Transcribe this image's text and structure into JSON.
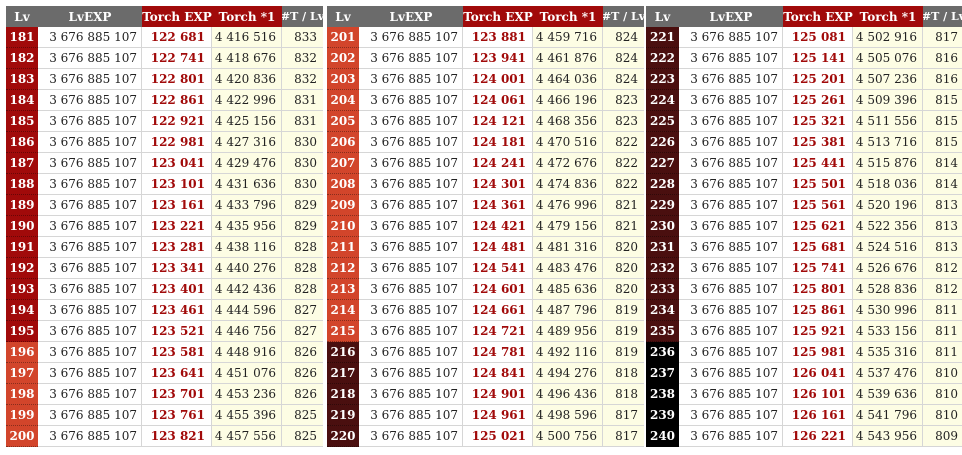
{
  "headers": {
    "lv": "Lv",
    "lvexp": "LvEXP",
    "torch_exp": "Torch EXP",
    "torch_1": "Torch *1",
    "ratio": "#T / Lv"
  },
  "colors": {
    "tier_a": "#a10a0a",
    "tier_b": "#d2452b",
    "tier_c": "#4a0f0f",
    "tier_d": "#000000",
    "accent_text": "#a10a0a",
    "yellow_cell": "#fdfde4"
  },
  "tables": [
    {
      "rows": [
        {
          "lv": "181",
          "exp": "3 676 885 107",
          "torch": "122 681",
          "torch1": "4 416 516",
          "ratio": "833",
          "tier": "a"
        },
        {
          "lv": "182",
          "exp": "3 676 885 107",
          "torch": "122 741",
          "torch1": "4 418 676",
          "ratio": "832",
          "tier": "a"
        },
        {
          "lv": "183",
          "exp": "3 676 885 107",
          "torch": "122 801",
          "torch1": "4 420 836",
          "ratio": "832",
          "tier": "a"
        },
        {
          "lv": "184",
          "exp": "3 676 885 107",
          "torch": "122 861",
          "torch1": "4 422 996",
          "ratio": "831",
          "tier": "a"
        },
        {
          "lv": "185",
          "exp": "3 676 885 107",
          "torch": "122 921",
          "torch1": "4 425 156",
          "ratio": "831",
          "tier": "a"
        },
        {
          "lv": "186",
          "exp": "3 676 885 107",
          "torch": "122 981",
          "torch1": "4 427 316",
          "ratio": "830",
          "tier": "a"
        },
        {
          "lv": "187",
          "exp": "3 676 885 107",
          "torch": "123 041",
          "torch1": "4 429 476",
          "ratio": "830",
          "tier": "a"
        },
        {
          "lv": "188",
          "exp": "3 676 885 107",
          "torch": "123 101",
          "torch1": "4 431 636",
          "ratio": "830",
          "tier": "a"
        },
        {
          "lv": "189",
          "exp": "3 676 885 107",
          "torch": "123 161",
          "torch1": "4 433 796",
          "ratio": "829",
          "tier": "a"
        },
        {
          "lv": "190",
          "exp": "3 676 885 107",
          "torch": "123 221",
          "torch1": "4 435 956",
          "ratio": "829",
          "tier": "a"
        },
        {
          "lv": "191",
          "exp": "3 676 885 107",
          "torch": "123 281",
          "torch1": "4 438 116",
          "ratio": "828",
          "tier": "a"
        },
        {
          "lv": "192",
          "exp": "3 676 885 107",
          "torch": "123 341",
          "torch1": "4 440 276",
          "ratio": "828",
          "tier": "a"
        },
        {
          "lv": "193",
          "exp": "3 676 885 107",
          "torch": "123 401",
          "torch1": "4 442 436",
          "ratio": "828",
          "tier": "a"
        },
        {
          "lv": "194",
          "exp": "3 676 885 107",
          "torch": "123 461",
          "torch1": "4 444 596",
          "ratio": "827",
          "tier": "a"
        },
        {
          "lv": "195",
          "exp": "3 676 885 107",
          "torch": "123 521",
          "torch1": "4 446 756",
          "ratio": "827",
          "tier": "a"
        },
        {
          "lv": "196",
          "exp": "3 676 885 107",
          "torch": "123 581",
          "torch1": "4 448 916",
          "ratio": "826",
          "tier": "b"
        },
        {
          "lv": "197",
          "exp": "3 676 885 107",
          "torch": "123 641",
          "torch1": "4 451 076",
          "ratio": "826",
          "tier": "b"
        },
        {
          "lv": "198",
          "exp": "3 676 885 107",
          "torch": "123 701",
          "torch1": "4 453 236",
          "ratio": "826",
          "tier": "b"
        },
        {
          "lv": "199",
          "exp": "3 676 885 107",
          "torch": "123 761",
          "torch1": "4 455 396",
          "ratio": "825",
          "tier": "b"
        },
        {
          "lv": "200",
          "exp": "3 676 885 107",
          "torch": "123 821",
          "torch1": "4 457 556",
          "ratio": "825",
          "tier": "b"
        }
      ]
    },
    {
      "rows": [
        {
          "lv": "201",
          "exp": "3 676 885 107",
          "torch": "123 881",
          "torch1": "4 459 716",
          "ratio": "824",
          "tier": "b"
        },
        {
          "lv": "202",
          "exp": "3 676 885 107",
          "torch": "123 941",
          "torch1": "4 461 876",
          "ratio": "824",
          "tier": "b"
        },
        {
          "lv": "203",
          "exp": "3 676 885 107",
          "torch": "124 001",
          "torch1": "4 464 036",
          "ratio": "824",
          "tier": "b"
        },
        {
          "lv": "204",
          "exp": "3 676 885 107",
          "torch": "124 061",
          "torch1": "4 466 196",
          "ratio": "823",
          "tier": "b"
        },
        {
          "lv": "205",
          "exp": "3 676 885 107",
          "torch": "124 121",
          "torch1": "4 468 356",
          "ratio": "823",
          "tier": "b"
        },
        {
          "lv": "206",
          "exp": "3 676 885 107",
          "torch": "124 181",
          "torch1": "4 470 516",
          "ratio": "822",
          "tier": "b"
        },
        {
          "lv": "207",
          "exp": "3 676 885 107",
          "torch": "124 241",
          "torch1": "4 472 676",
          "ratio": "822",
          "tier": "b"
        },
        {
          "lv": "208",
          "exp": "3 676 885 107",
          "torch": "124 301",
          "torch1": "4 474 836",
          "ratio": "822",
          "tier": "b"
        },
        {
          "lv": "209",
          "exp": "3 676 885 107",
          "torch": "124 361",
          "torch1": "4 476 996",
          "ratio": "821",
          "tier": "b"
        },
        {
          "lv": "210",
          "exp": "3 676 885 107",
          "torch": "124 421",
          "torch1": "4 479 156",
          "ratio": "821",
          "tier": "b"
        },
        {
          "lv": "211",
          "exp": "3 676 885 107",
          "torch": "124 481",
          "torch1": "4 481 316",
          "ratio": "820",
          "tier": "b"
        },
        {
          "lv": "212",
          "exp": "3 676 885 107",
          "torch": "124 541",
          "torch1": "4 483 476",
          "ratio": "820",
          "tier": "b"
        },
        {
          "lv": "213",
          "exp": "3 676 885 107",
          "torch": "124 601",
          "torch1": "4 485 636",
          "ratio": "820",
          "tier": "b"
        },
        {
          "lv": "214",
          "exp": "3 676 885 107",
          "torch": "124 661",
          "torch1": "4 487 796",
          "ratio": "819",
          "tier": "b"
        },
        {
          "lv": "215",
          "exp": "3 676 885 107",
          "torch": "124 721",
          "torch1": "4 489 956",
          "ratio": "819",
          "tier": "b"
        },
        {
          "lv": "216",
          "exp": "3 676 885 107",
          "torch": "124 781",
          "torch1": "4 492 116",
          "ratio": "819",
          "tier": "c"
        },
        {
          "lv": "217",
          "exp": "3 676 885 107",
          "torch": "124 841",
          "torch1": "4 494 276",
          "ratio": "818",
          "tier": "c"
        },
        {
          "lv": "218",
          "exp": "3 676 885 107",
          "torch": "124 901",
          "torch1": "4 496 436",
          "ratio": "818",
          "tier": "c"
        },
        {
          "lv": "219",
          "exp": "3 676 885 107",
          "torch": "124 961",
          "torch1": "4 498 596",
          "ratio": "817",
          "tier": "c"
        },
        {
          "lv": "220",
          "exp": "3 676 885 107",
          "torch": "125 021",
          "torch1": "4 500 756",
          "ratio": "817",
          "tier": "c"
        }
      ]
    },
    {
      "rows": [
        {
          "lv": "221",
          "exp": "3 676 885 107",
          "torch": "125 081",
          "torch1": "4 502 916",
          "ratio": "817",
          "tier": "c"
        },
        {
          "lv": "222",
          "exp": "3 676 885 107",
          "torch": "125 141",
          "torch1": "4 505 076",
          "ratio": "816",
          "tier": "c"
        },
        {
          "lv": "223",
          "exp": "3 676 885 107",
          "torch": "125 201",
          "torch1": "4 507 236",
          "ratio": "816",
          "tier": "c"
        },
        {
          "lv": "224",
          "exp": "3 676 885 107",
          "torch": "125 261",
          "torch1": "4 509 396",
          "ratio": "815",
          "tier": "c"
        },
        {
          "lv": "225",
          "exp": "3 676 885 107",
          "torch": "125 321",
          "torch1": "4 511 556",
          "ratio": "815",
          "tier": "c"
        },
        {
          "lv": "226",
          "exp": "3 676 885 107",
          "torch": "125 381",
          "torch1": "4 513 716",
          "ratio": "815",
          "tier": "c"
        },
        {
          "lv": "227",
          "exp": "3 676 885 107",
          "torch": "125 441",
          "torch1": "4 515 876",
          "ratio": "814",
          "tier": "c"
        },
        {
          "lv": "228",
          "exp": "3 676 885 107",
          "torch": "125 501",
          "torch1": "4 518 036",
          "ratio": "814",
          "tier": "c"
        },
        {
          "lv": "229",
          "exp": "3 676 885 107",
          "torch": "125 561",
          "torch1": "4 520 196",
          "ratio": "813",
          "tier": "c"
        },
        {
          "lv": "230",
          "exp": "3 676 885 107",
          "torch": "125 621",
          "torch1": "4 522 356",
          "ratio": "813",
          "tier": "c"
        },
        {
          "lv": "231",
          "exp": "3 676 885 107",
          "torch": "125 681",
          "torch1": "4 524 516",
          "ratio": "813",
          "tier": "c"
        },
        {
          "lv": "232",
          "exp": "3 676 885 107",
          "torch": "125 741",
          "torch1": "4 526 676",
          "ratio": "812",
          "tier": "c"
        },
        {
          "lv": "233",
          "exp": "3 676 885 107",
          "torch": "125 801",
          "torch1": "4 528 836",
          "ratio": "812",
          "tier": "c"
        },
        {
          "lv": "234",
          "exp": "3 676 885 107",
          "torch": "125 861",
          "torch1": "4 530 996",
          "ratio": "811",
          "tier": "c"
        },
        {
          "lv": "235",
          "exp": "3 676 885 107",
          "torch": "125 921",
          "torch1": "4 533 156",
          "ratio": "811",
          "tier": "c"
        },
        {
          "lv": "236",
          "exp": "3 676 885 107",
          "torch": "125 981",
          "torch1": "4 535 316",
          "ratio": "811",
          "tier": "d"
        },
        {
          "lv": "237",
          "exp": "3 676 885 107",
          "torch": "126 041",
          "torch1": "4 537 476",
          "ratio": "810",
          "tier": "d"
        },
        {
          "lv": "238",
          "exp": "3 676 885 107",
          "torch": "126 101",
          "torch1": "4 539 636",
          "ratio": "810",
          "tier": "d"
        },
        {
          "lv": "239",
          "exp": "3 676 885 107",
          "torch": "126 161",
          "torch1": "4 541 796",
          "ratio": "810",
          "tier": "d"
        },
        {
          "lv": "240",
          "exp": "3 676 885 107",
          "torch": "126 221",
          "torch1": "4 543 956",
          "ratio": "809",
          "tier": "d"
        }
      ]
    }
  ]
}
